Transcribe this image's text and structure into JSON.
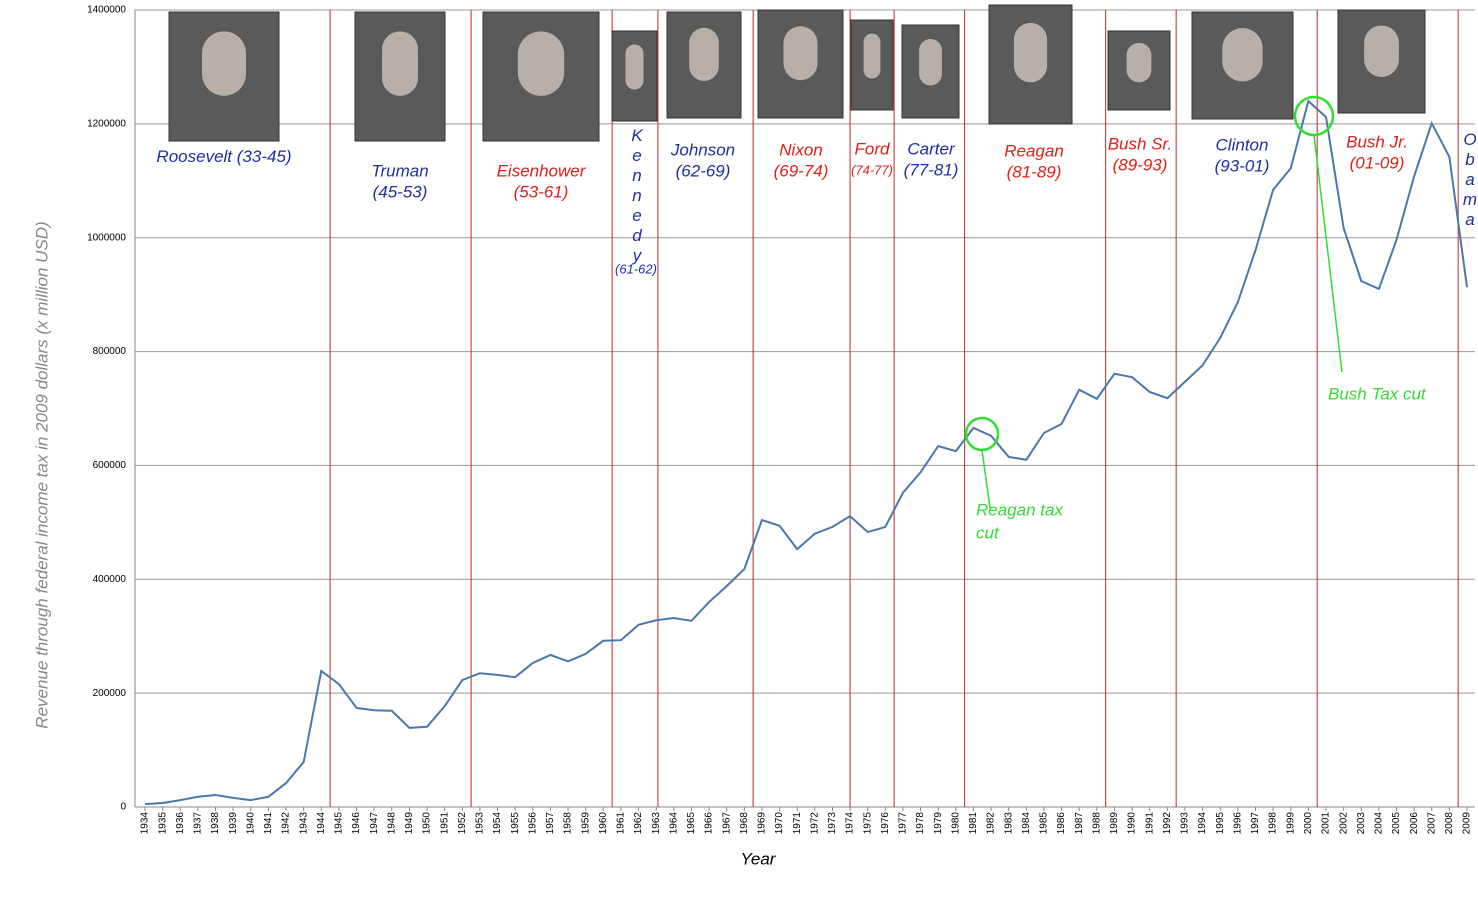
{
  "chart_data": {
    "type": "line",
    "x_label": "Year",
    "y_label": "Revenue through federal income tax in 2009 dollars (x million USD)",
    "categories": [
      "1934",
      "1935",
      "1936",
      "1937",
      "1938",
      "1939",
      "1940",
      "1941",
      "1942",
      "1943",
      "1944",
      "1945",
      "1946",
      "1947",
      "1948",
      "1949",
      "1950",
      "1951",
      "1952",
      "1953",
      "1954",
      "1955",
      "1956",
      "1957",
      "1958",
      "1959",
      "1960",
      "1961",
      "1962",
      "1963",
      "1964",
      "1965",
      "1966",
      "1967",
      "1968",
      "1969",
      "1970",
      "1971",
      "1972",
      "1973",
      "1974",
      "1975",
      "1976",
      "1977",
      "1978",
      "1979",
      "1980",
      "1981",
      "1982",
      "1983",
      "1984",
      "1985",
      "1986",
      "1987",
      "1988",
      "1989",
      "1990",
      "1991",
      "1992",
      "1993",
      "1994",
      "1995",
      "1996",
      "1997",
      "1998",
      "1999",
      "2000",
      "2001",
      "2002",
      "2003",
      "2004",
      "2005",
      "2006",
      "2007",
      "2008",
      "2009"
    ],
    "values": [
      5000,
      7000,
      12000,
      18000,
      21000,
      16000,
      12000,
      18000,
      42000,
      79000,
      239000,
      216000,
      174000,
      170000,
      169000,
      139000,
      141000,
      177000,
      223000,
      235000,
      232000,
      228000,
      253000,
      267000,
      256000,
      269000,
      292000,
      293000,
      320000,
      328000,
      332000,
      327000,
      360000,
      388000,
      418000,
      504000,
      494000,
      453000,
      480000,
      492000,
      511000,
      483000,
      492000,
      552000,
      588000,
      634000,
      625000,
      666000,
      652000,
      615000,
      610000,
      657000,
      673000,
      733000,
      717000,
      761000,
      755000,
      729000,
      718000,
      747000,
      776000,
      824000,
      887000,
      978000,
      1084000,
      1122000,
      1240000,
      1212000,
      1017000,
      924000,
      910000,
      996000,
      1108000,
      1201000,
      1142000,
      913000
    ],
    "color": "#4a78aa",
    "ylim": [
      0,
      1400000
    ],
    "yticks": [
      0,
      200000,
      400000,
      600000,
      800000,
      1000000,
      1200000,
      1400000
    ],
    "grid": true,
    "eras": [
      {
        "name": "Roosevelt",
        "years": "(33-45)",
        "color": "#1f2fa0"
      },
      {
        "name": "Truman",
        "years": "(45-53)",
        "color": "#1f2fa0",
        "divider": 1944.5
      },
      {
        "name": "Eisenhower",
        "years": "(53-61)",
        "color": "#e0201a",
        "divider": 1952.5
      },
      {
        "name": "Kennedy",
        "years": "(61-62)",
        "color": "#1f2fa0",
        "divider": 1960.5
      },
      {
        "name": "Johnson",
        "years": "(62-69)",
        "color": "#1f2fa0",
        "divider": 1963.1
      },
      {
        "name": "Nixon",
        "years": "(69-74)",
        "color": "#e0201a",
        "divider": 1968.5
      },
      {
        "name": "Ford",
        "years": "(74-77)",
        "color": "#e0201a",
        "divider": 1974
      },
      {
        "name": "Carter",
        "years": "(77-81)",
        "color": "#1f2fa0",
        "divider": 1976.5
      },
      {
        "name": "Reagan",
        "years": "(81-89)",
        "color": "#e0201a",
        "divider": 1980.5
      },
      {
        "name": "Bush Sr.",
        "years": "(89-93)",
        "color": "#e0201a",
        "divider": 1988.5
      },
      {
        "name": "Clinton",
        "years": "(93-01)",
        "color": "#1f2fa0",
        "divider": 1992.5
      },
      {
        "name": "Bush Jr.",
        "years": "(01-09)",
        "color": "#e0201a",
        "divider": 2000.5
      },
      {
        "name": "Obama",
        "color": "#1f2fa0",
        "divider": 2008.5
      }
    ],
    "annotations": [
      {
        "lines": [
          "Reagan tax",
          "cut"
        ],
        "color": "#33dd33"
      },
      {
        "lines": [
          "Bush Tax cut"
        ],
        "color": "#33dd33"
      }
    ]
  }
}
